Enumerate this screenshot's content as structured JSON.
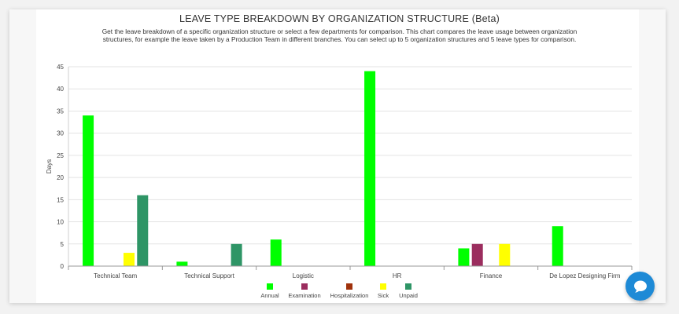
{
  "header": {
    "title": "LEAVE TYPE BREAKDOWN BY ORGANIZATION STRUCTURE (Beta)",
    "subtitle": "Get the leave breakdown of a specific organization structure or select a few departments for comparison. This chart compares the leave usage between organization structures, for example the leave taken by a Production Team in different branches. You can select up to 5 organization structures and 5 leave types for comparison."
  },
  "chat": {
    "icon": "chat-bubble-icon",
    "color": "#1e8ad6"
  },
  "chart_data": {
    "type": "bar",
    "title": "LEAVE TYPE BREAKDOWN BY ORGANIZATION STRUCTURE (Beta)",
    "xlabel": "",
    "ylabel": "Days",
    "ylim": [
      0,
      45
    ],
    "yticks": [
      0,
      5,
      10,
      15,
      20,
      25,
      30,
      35,
      40,
      45
    ],
    "grid": true,
    "legend_position": "bottom",
    "categories": [
      "Technical Team",
      "Technical Support",
      "Logistic",
      "HR",
      "Finance",
      "De Lopez Designing Firm"
    ],
    "series": [
      {
        "name": "Annual",
        "color": "#00ff00",
        "values": [
          34,
          1,
          6,
          44,
          4,
          9
        ]
      },
      {
        "name": "Examination",
        "color": "#9b2d5e",
        "values": [
          0,
          0,
          0,
          0,
          5,
          0
        ]
      },
      {
        "name": "Hospitalization",
        "color": "#a0320c",
        "values": [
          0,
          0,
          0,
          0,
          0,
          0
        ]
      },
      {
        "name": "Sick",
        "color": "#ffff00",
        "values": [
          3,
          0,
          0,
          0,
          5,
          0
        ]
      },
      {
        "name": "Unpaid",
        "color": "#2e9566",
        "values": [
          16,
          5,
          0,
          0,
          0,
          0
        ]
      }
    ]
  }
}
